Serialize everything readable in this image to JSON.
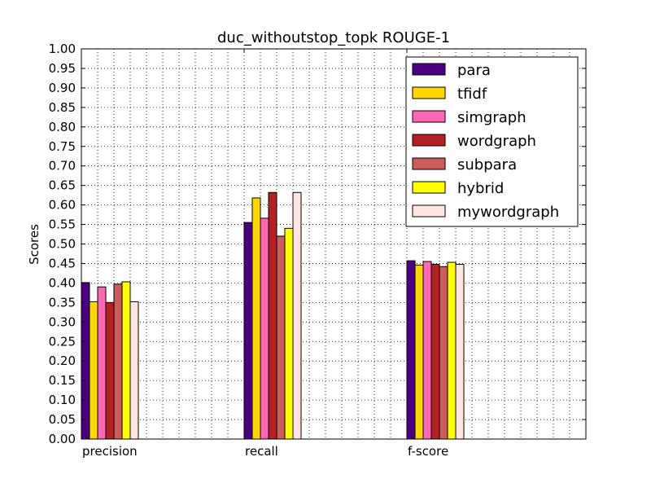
{
  "chart_data": {
    "type": "bar",
    "title": "duc_withoutstop_topk ROUGE-1",
    "xlabel": "",
    "ylabel": "Scores",
    "ylim": [
      0,
      1.0
    ],
    "yticks": [
      "0.00",
      "0.05",
      "0.10",
      "0.15",
      "0.20",
      "0.25",
      "0.30",
      "0.35",
      "0.40",
      "0.45",
      "0.50",
      "0.55",
      "0.60",
      "0.65",
      "0.70",
      "0.75",
      "0.80",
      "0.85",
      "0.90",
      "0.95",
      "1.00"
    ],
    "categories": [
      "precision",
      "recall",
      "f-score"
    ],
    "grid": true,
    "legend_position": "top-right",
    "series": [
      {
        "name": "para",
        "color": "#4b0082",
        "values": [
          0.401,
          0.555,
          0.457
        ]
      },
      {
        "name": "tfidf",
        "color": "#ffd700",
        "values": [
          0.352,
          0.618,
          0.446
        ]
      },
      {
        "name": "simgraph",
        "color": "#ff69b4",
        "values": [
          0.39,
          0.566,
          0.455
        ]
      },
      {
        "name": "wordgraph",
        "color": "#b22222",
        "values": [
          0.35,
          0.632,
          0.448
        ]
      },
      {
        "name": "subpara",
        "color": "#cd5c5c",
        "values": [
          0.397,
          0.52,
          0.442
        ]
      },
      {
        "name": "hybrid",
        "color": "#ffff00",
        "values": [
          0.403,
          0.54,
          0.453
        ]
      },
      {
        "name": "mywordgraph",
        "color": "#ffe4e1",
        "values": [
          0.352,
          0.632,
          0.448
        ]
      }
    ]
  }
}
